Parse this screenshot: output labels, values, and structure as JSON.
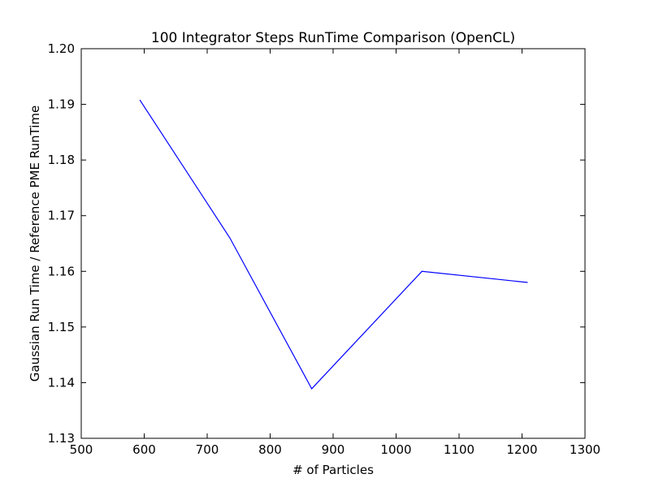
{
  "chart_data": {
    "type": "line",
    "title": "100 Integrator Steps RunTime Comparison (OpenCL)",
    "xlabel": "# of Particles",
    "ylabel": "Gaussian Run Time / Reference PME RunTime",
    "xlim": [
      500,
      1300
    ],
    "ylim": [
      1.13,
      1.2
    ],
    "x_ticks": [
      500,
      600,
      700,
      800,
      900,
      1000,
      1100,
      1200,
      1300
    ],
    "x_tick_labels": [
      "500",
      "600",
      "700",
      "800",
      "900",
      "1000",
      "1100",
      "1200",
      "1300"
    ],
    "y_ticks": [
      1.13,
      1.14,
      1.15,
      1.16,
      1.17,
      1.18,
      1.19,
      1.2
    ],
    "y_tick_labels": [
      "1.13",
      "1.14",
      "1.15",
      "1.16",
      "1.17",
      "1.18",
      "1.19",
      "1.20"
    ],
    "grid": false,
    "series": [
      {
        "color": "#0000ff",
        "x": [
          593,
          736,
          866,
          1041,
          1209
        ],
        "y": [
          1.1908,
          1.166,
          1.1389,
          1.16,
          1.158
        ]
      }
    ]
  }
}
